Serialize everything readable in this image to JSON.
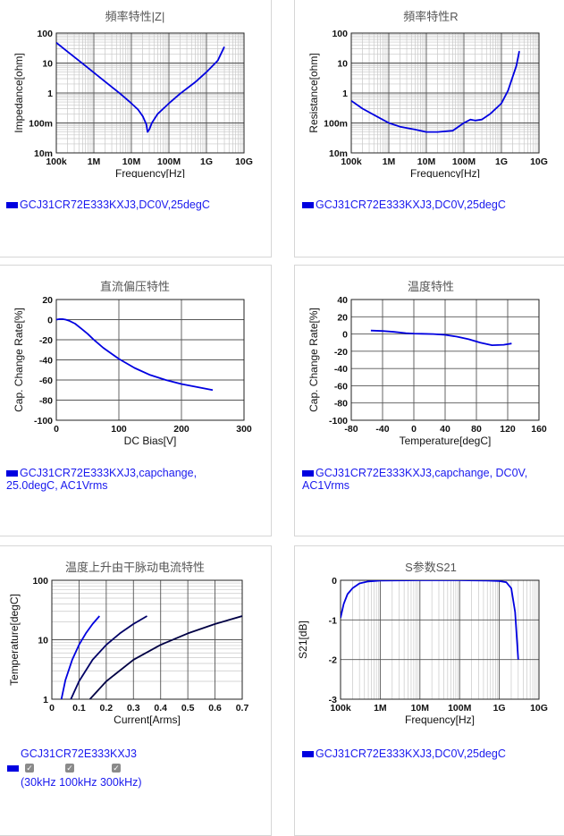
{
  "panels": [
    {
      "title": "頻率特性|Z|",
      "legend": [
        "GCJ31CR72E333KXJ3,DC0V,25degC"
      ]
    },
    {
      "title": "頻率特性R",
      "legend": [
        "GCJ31CR72E333KXJ3,DC0V,25degC"
      ]
    },
    {
      "title": "直流偏压特性",
      "legend": [
        "GCJ31CR72E333KXJ3,capchange,",
        "25.0degC, AC1Vrms"
      ]
    },
    {
      "title": "温度特性",
      "legend": [
        "GCJ31CR72E333KXJ3,capchange, DC0V,",
        "AC1Vrms"
      ]
    },
    {
      "title": "温度上升由干脉动电流特性",
      "legend": [
        "GCJ31CR72E333KXJ3"
      ],
      "checkboxes": [
        {
          "label": "30kHz",
          "checked": true
        },
        {
          "label": "100kHz",
          "checked": true
        },
        {
          "label": "300kHz",
          "checked": true
        }
      ],
      "checkbox_prefix": "(",
      "checkbox_suffix": ")"
    },
    {
      "title": "S参数S21",
      "legend": [
        "GCJ31CR72E333KXJ3,DC0V,25degC"
      ]
    }
  ],
  "colors": {
    "series": "#0000e0",
    "dark_series": "#000066",
    "legend_text": "#1a1aee"
  },
  "chart_data": [
    {
      "type": "line",
      "title": "頻率特性|Z|",
      "xlabel": "Frequency[Hz]",
      "ylabel": "Impedance[ohm]",
      "xscale": "log",
      "yscale": "log",
      "xlim": [
        100000,
        10000000000
      ],
      "ylim": [
        0.01,
        100
      ],
      "xticks": [
        "100k",
        "1M",
        "10M",
        "100M",
        "1G",
        "10G"
      ],
      "yticks": [
        "10m",
        "100m",
        "1",
        "10",
        "100"
      ],
      "series": [
        {
          "name": "GCJ31CR72E333KXJ3,DC0V,25degC",
          "x": [
            100000,
            200000,
            500000,
            1000000,
            2000000,
            5000000,
            10000000,
            15000000,
            20000000,
            25000000,
            27000000,
            30000000,
            35000000,
            50000000,
            100000000,
            200000000,
            500000000,
            1000000000,
            2000000000,
            3000000000
          ],
          "y": [
            48,
            24,
            9.6,
            4.8,
            2.4,
            0.95,
            0.45,
            0.28,
            0.17,
            0.09,
            0.05,
            0.06,
            0.1,
            0.2,
            0.45,
            0.95,
            2.3,
            5,
            12,
            35
          ]
        }
      ],
      "grid": true
    },
    {
      "type": "line",
      "title": "頻率特性R",
      "xlabel": "Frequency[Hz]",
      "ylabel": "Resistance[ohm]",
      "xscale": "log",
      "yscale": "log",
      "xlim": [
        100000,
        10000000000
      ],
      "ylim": [
        0.01,
        100
      ],
      "xticks": [
        "100k",
        "1M",
        "10M",
        "100M",
        "1G",
        "10G"
      ],
      "yticks": [
        "10m",
        "100m",
        "1",
        "10",
        "100"
      ],
      "series": [
        {
          "name": "GCJ31CR72E333KXJ3,DC0V,25degC",
          "x": [
            100000,
            200000,
            500000,
            1000000,
            2000000,
            5000000,
            10000000,
            20000000,
            50000000,
            100000000,
            150000000,
            200000000,
            300000000,
            500000000,
            1000000000,
            1500000000,
            2000000000,
            2500000000,
            3000000000
          ],
          "y": [
            0.55,
            0.3,
            0.16,
            0.1,
            0.075,
            0.06,
            0.05,
            0.05,
            0.055,
            0.1,
            0.13,
            0.12,
            0.13,
            0.2,
            0.45,
            1.2,
            3.5,
            8,
            25
          ]
        }
      ],
      "grid": true
    },
    {
      "type": "line",
      "title": "直流偏压特性",
      "xlabel": "DC Bias[V]",
      "ylabel": "Cap. Change Rate[%]",
      "xlim": [
        0,
        300
      ],
      "ylim": [
        -100,
        20
      ],
      "xticks": [
        "0",
        "100",
        "200",
        "300"
      ],
      "yticks": [
        "-100",
        "-80",
        "-60",
        "-40",
        "-20",
        "0",
        "20"
      ],
      "series": [
        {
          "name": "GCJ31CR72E333KXJ3,capchange,25.0degC, AC1Vrms",
          "x": [
            0,
            5,
            10,
            15,
            20,
            30,
            40,
            50,
            60,
            75,
            100,
            125,
            150,
            175,
            200,
            225,
            250
          ],
          "y": [
            0,
            0.5,
            0.5,
            0,
            -1,
            -4,
            -9,
            -14,
            -20,
            -28,
            -39,
            -48,
            -55,
            -60,
            -64,
            -67,
            -70
          ]
        }
      ],
      "grid": true
    },
    {
      "type": "line",
      "title": "温度特性",
      "xlabel": "Temperature[degC]",
      "ylabel": "Cap. Change Rate[%]",
      "xlim": [
        -80,
        160
      ],
      "ylim": [
        -100,
        40
      ],
      "xticks": [
        "-80",
        "-40",
        "0",
        "40",
        "80",
        "120",
        "160"
      ],
      "yticks": [
        "-100",
        "-80",
        "-60",
        "-40",
        "-20",
        "0",
        "20",
        "40"
      ],
      "series": [
        {
          "name": "GCJ31CR72E333KXJ3,capchange, DC0V,AC1Vrms",
          "x": [
            -55,
            -40,
            -25,
            -10,
            0,
            10,
            25,
            40,
            55,
            70,
            85,
            100,
            115,
            125
          ],
          "y": [
            4,
            3.5,
            2.5,
            1,
            0.5,
            0.3,
            0,
            -1,
            -3,
            -6,
            -10,
            -13,
            -12.5,
            -11
          ]
        }
      ],
      "grid": true
    },
    {
      "type": "line",
      "title": "温度上升由干脉动电流特性",
      "xlabel": "Current[Arms]",
      "ylabel": "Temperature[degC]",
      "yscale": "log",
      "xlim": [
        0,
        0.7
      ],
      "ylim": [
        1,
        100
      ],
      "xticks": [
        "0",
        "0.1",
        "0.2",
        "0.3",
        "0.4",
        "0.5",
        "0.6",
        "0.7"
      ],
      "yticks": [
        "1",
        "10",
        "100"
      ],
      "series": [
        {
          "name": "30kHz",
          "x": [
            0.035,
            0.05,
            0.075,
            0.1,
            0.125,
            0.15,
            0.175
          ],
          "y": [
            1,
            2.1,
            4.6,
            8.2,
            12.8,
            18.4,
            25
          ]
        },
        {
          "name": "100kHz",
          "x": [
            0.07,
            0.1,
            0.15,
            0.2,
            0.25,
            0.3,
            0.35
          ],
          "y": [
            1,
            2,
            4.6,
            8.2,
            12.8,
            18.4,
            25
          ]
        },
        {
          "name": "300kHz",
          "x": [
            0.14,
            0.2,
            0.3,
            0.4,
            0.5,
            0.6,
            0.7
          ],
          "y": [
            1,
            2,
            4.6,
            8.2,
            12.8,
            18.4,
            25
          ]
        }
      ],
      "grid": true
    },
    {
      "type": "line",
      "title": "S参数S21",
      "xlabel": "Frequency[Hz]",
      "ylabel": "S21[dB]",
      "xscale": "log",
      "xlim": [
        100000,
        10000000000
      ],
      "ylim": [
        -3,
        0
      ],
      "xticks": [
        "100k",
        "1M",
        "10M",
        "100M",
        "1G",
        "10G"
      ],
      "yticks": [
        "-3",
        "-2",
        "-1",
        "0"
      ],
      "series": [
        {
          "name": "GCJ31CR72E333KXJ3,DC0V,25degC",
          "x": [
            100000,
            120000,
            150000,
            200000,
            300000,
            500000,
            1000000,
            10000000,
            100000000,
            500000000,
            1000000000,
            1500000000,
            2000000000,
            2500000000,
            3000000000
          ],
          "y": [
            -0.95,
            -0.6,
            -0.35,
            -0.2,
            -0.08,
            -0.03,
            -0.01,
            0,
            0,
            -0.01,
            -0.02,
            -0.05,
            -0.2,
            -0.8,
            -2
          ]
        }
      ],
      "grid": true
    }
  ]
}
